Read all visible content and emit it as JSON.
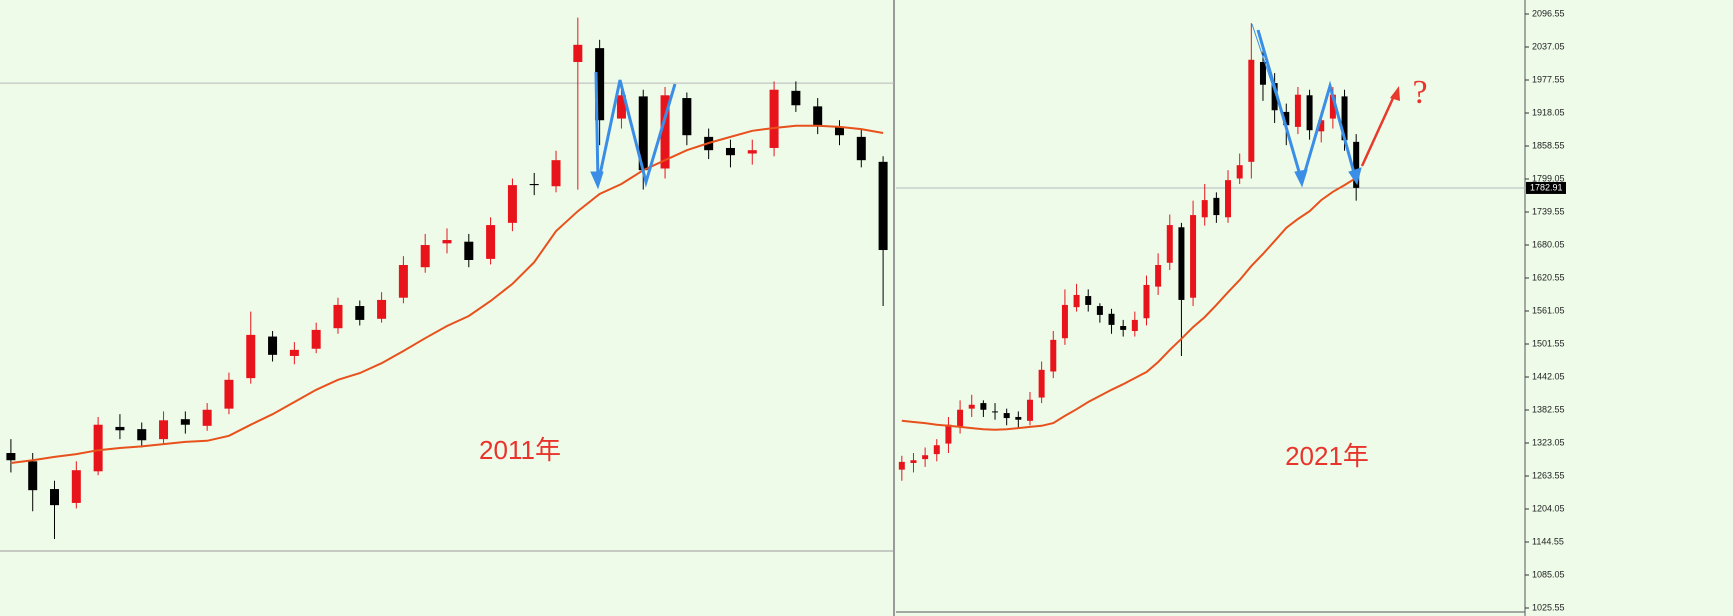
{
  "chart_data": [
    {
      "type": "candlestick",
      "title": "2011年",
      "title_color": "#e8342c",
      "up_color": "#e8141c",
      "down_color": "#000000",
      "ylim": [
        1025.55,
        2096.55
      ],
      "level_line": 1972,
      "open": [
        1305,
        1290,
        1240,
        1215,
        1272,
        1352,
        1348,
        1330,
        1366,
        1354,
        1385,
        1440,
        1515,
        1480,
        1493,
        1530,
        1570,
        1547,
        1585,
        1640,
        1683,
        1686,
        1655,
        1720,
        1790,
        1786,
        2010,
        2035,
        1908,
        1948,
        1818,
        1945,
        1875,
        1855,
        1845,
        1855,
        1958,
        1930,
        1893,
        1875,
        1830
      ],
      "high": [
        1330,
        1305,
        1255,
        1290,
        1370,
        1375,
        1360,
        1380,
        1380,
        1395,
        1450,
        1560,
        1525,
        1505,
        1540,
        1585,
        1580,
        1595,
        1660,
        1700,
        1710,
        1700,
        1730,
        1800,
        1810,
        1850,
        2090,
        2050,
        1975,
        1960,
        1965,
        1955,
        1890,
        1870,
        1870,
        1975,
        1975,
        1945,
        1905,
        1890,
        1840
      ],
      "low": [
        1270,
        1200,
        1150,
        1205,
        1265,
        1330,
        1315,
        1320,
        1340,
        1345,
        1375,
        1430,
        1470,
        1465,
        1485,
        1520,
        1535,
        1540,
        1575,
        1630,
        1665,
        1640,
        1645,
        1705,
        1770,
        1775,
        1780,
        1860,
        1890,
        1780,
        1800,
        1860,
        1835,
        1820,
        1825,
        1840,
        1920,
        1880,
        1860,
        1820,
        1570
      ],
      "close": [
        1292,
        1238,
        1211,
        1274,
        1356,
        1346,
        1328,
        1364,
        1356,
        1383,
        1437,
        1518,
        1482,
        1491,
        1527,
        1572,
        1545,
        1581,
        1644,
        1680,
        1689,
        1653,
        1716,
        1788,
        1788,
        1833,
        2041,
        1905,
        1950,
        1815,
        1950,
        1878,
        1851,
        1842,
        1851,
        1960,
        1932,
        1896,
        1878,
        1833,
        1671
      ],
      "ma": {
        "color": "#e8501c",
        "values": [
          1287,
          1292,
          1298,
          1303,
          1310,
          1314,
          1317,
          1321,
          1325,
          1327,
          1336,
          1356,
          1375,
          1397,
          1419,
          1437,
          1449,
          1467,
          1489,
          1512,
          1534,
          1552,
          1579,
          1610,
          1649,
          1705,
          1741,
          1772,
          1790,
          1815,
          1833,
          1851,
          1864,
          1875,
          1886,
          1891,
          1895,
          1895,
          1893,
          1889,
          1882
        ]
      }
    },
    {
      "type": "candlestick",
      "title": "2021年",
      "title_color": "#e8342c",
      "annotation": "?",
      "up_color": "#e8141c",
      "down_color": "#000000",
      "ylim": [
        1025.55,
        2096.55
      ],
      "current_price": 1782.91,
      "yticks": [
        2096.55,
        2037.05,
        1977.55,
        1918.05,
        1858.55,
        1799.05,
        1739.55,
        1680.05,
        1620.55,
        1561.05,
        1501.55,
        1442.05,
        1382.55,
        1323.05,
        1263.55,
        1204.05,
        1144.55,
        1085.05,
        1025.55
      ],
      "open": [
        1275,
        1287,
        1294,
        1303,
        1322,
        1352,
        1385,
        1395,
        1380,
        1377,
        1370,
        1363,
        1405,
        1452,
        1512,
        1568,
        1588,
        1570,
        1556,
        1534,
        1525,
        1548,
        1605,
        1648,
        1712,
        1585,
        1730,
        1765,
        1730,
        1800,
        1830,
        2010,
        1972,
        1920,
        1893,
        1950,
        1885,
        1908,
        1948,
        1866
      ],
      "high": [
        1300,
        1305,
        1315,
        1330,
        1370,
        1400,
        1410,
        1400,
        1395,
        1385,
        1380,
        1415,
        1470,
        1525,
        1600,
        1610,
        1600,
        1575,
        1565,
        1545,
        1560,
        1625,
        1665,
        1735,
        1720,
        1760,
        1790,
        1775,
        1815,
        1845,
        2080,
        2030,
        1990,
        1935,
        1965,
        1960,
        1920,
        1965,
        1960,
        1880
      ],
      "low": [
        1255,
        1270,
        1280,
        1290,
        1305,
        1340,
        1370,
        1370,
        1365,
        1355,
        1350,
        1355,
        1395,
        1440,
        1500,
        1560,
        1560,
        1540,
        1520,
        1515,
        1515,
        1535,
        1590,
        1635,
        1480,
        1570,
        1715,
        1720,
        1720,
        1790,
        1800,
        1940,
        1900,
        1860,
        1880,
        1870,
        1865,
        1890,
        1850,
        1760
      ],
      "close": [
        1289,
        1292,
        1301,
        1319,
        1356,
        1383,
        1392,
        1383,
        1379,
        1368,
        1365,
        1401,
        1455,
        1509,
        1572,
        1590,
        1572,
        1554,
        1536,
        1527,
        1545,
        1608,
        1644,
        1716,
        1581,
        1734,
        1761,
        1734,
        1797,
        1824,
        2014,
        1969,
        1923,
        1896,
        1951,
        1887,
        1905,
        1951,
        1869,
        1783
      ],
      "ma": {
        "color": "#e8501c",
        "values": [
          1363,
          1361,
          1359,
          1356,
          1354,
          1352,
          1350,
          1348,
          1347,
          1348,
          1350,
          1352,
          1354,
          1359,
          1372,
          1384,
          1397,
          1408,
          1419,
          1429,
          1440,
          1451,
          1469,
          1491,
          1511,
          1532,
          1550,
          1572,
          1595,
          1617,
          1642,
          1664,
          1687,
          1711,
          1727,
          1741,
          1761,
          1776,
          1788,
          1801
        ]
      }
    }
  ]
}
